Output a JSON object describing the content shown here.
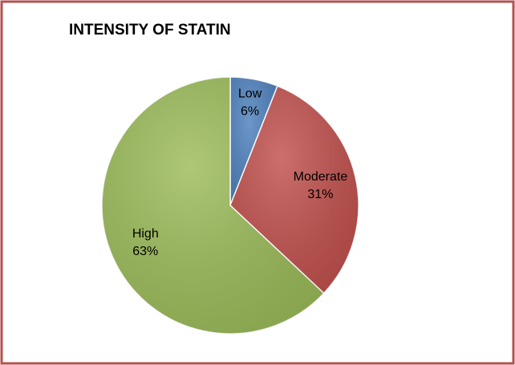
{
  "chart_data": {
    "type": "pie",
    "title": "INTENSITY OF STATIN",
    "categories": [
      "Low",
      "Moderate",
      "High"
    ],
    "values": [
      6,
      31,
      63
    ],
    "value_labels": [
      "6%",
      "31%",
      "63%"
    ],
    "colors": [
      "#4f81bd",
      "#c0504d",
      "#9bbb59"
    ]
  }
}
